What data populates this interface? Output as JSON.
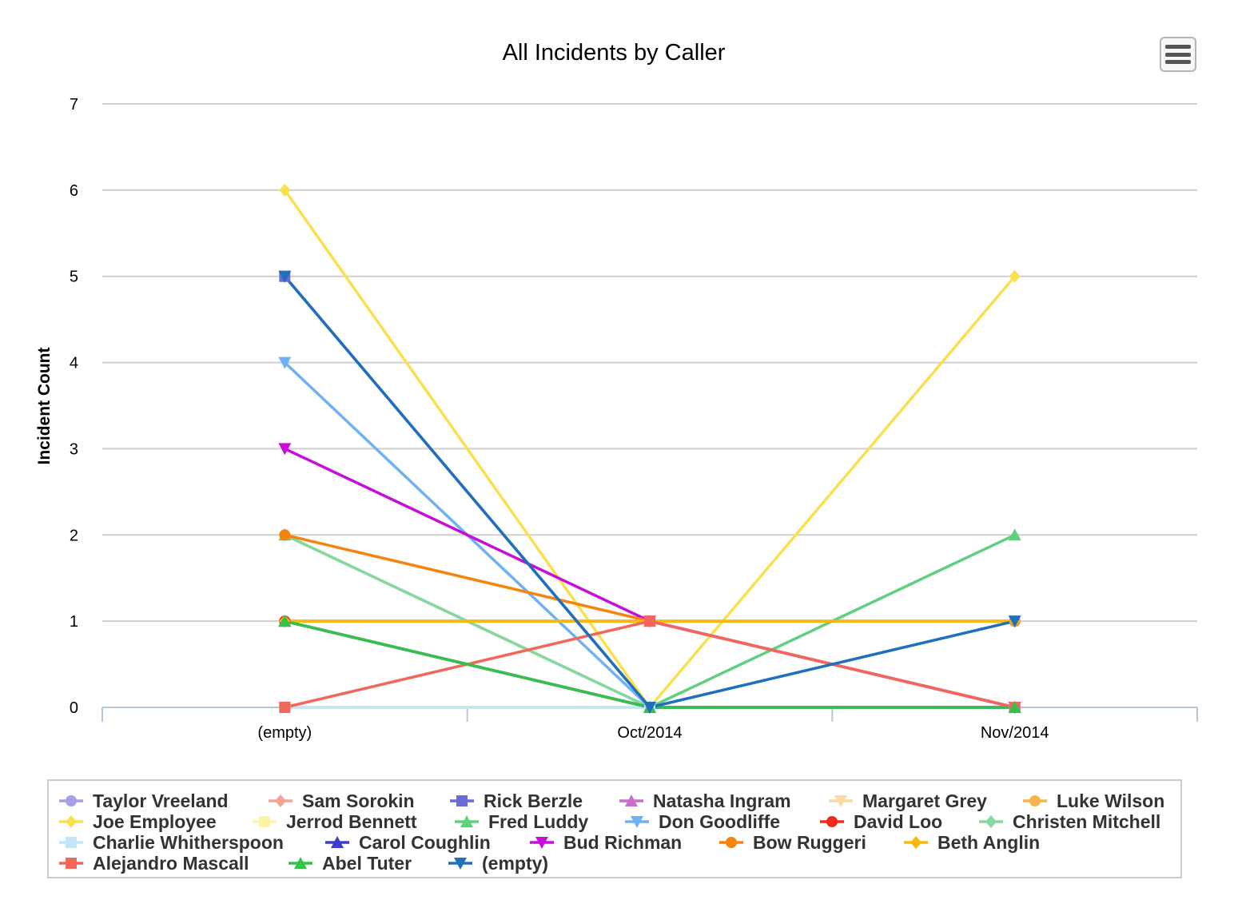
{
  "chart_data": {
    "type": "line",
    "title": "All Incidents by Caller",
    "xlabel": "",
    "ylabel": "Incident Count",
    "categories": [
      "(empty)",
      "Oct/2014",
      "Nov/2014"
    ],
    "ylim": [
      0,
      7
    ],
    "yticks": [
      0,
      1,
      2,
      3,
      4,
      5,
      6,
      7
    ],
    "grid": true,
    "legend_position": "bottom",
    "series": [
      {
        "name": "Taylor Vreeland",
        "values": [
          1,
          1,
          0
        ],
        "color": "#a3a0e6",
        "marker": "circle"
      },
      {
        "name": "Sam Sorokin",
        "values": [
          1,
          1,
          0
        ],
        "color": "#f7a296",
        "marker": "diamond"
      },
      {
        "name": "Rick Berzle",
        "values": [
          5,
          0,
          0
        ],
        "color": "#6b6bd6",
        "marker": "square"
      },
      {
        "name": "Natasha Ingram",
        "values": [
          1,
          1,
          0
        ],
        "color": "#c96fc9",
        "marker": "triangle"
      },
      {
        "name": "Margaret Grey",
        "values": [
          0,
          0,
          0
        ],
        "color": "#fcd9a0",
        "marker": "triangle-down"
      },
      {
        "name": "Luke Wilson",
        "values": [
          1,
          1,
          1
        ],
        "color": "#f6b44b",
        "marker": "circle"
      },
      {
        "name": "Joe Employee",
        "values": [
          6,
          0,
          5
        ],
        "color": "#f9e04e",
        "marker": "diamond"
      },
      {
        "name": "Jerrod Bennett",
        "values": [
          0,
          0,
          0
        ],
        "color": "#fbf3a6",
        "marker": "square"
      },
      {
        "name": "Fred Luddy",
        "values": [
          2,
          0,
          2
        ],
        "color": "#5fd07e",
        "marker": "triangle"
      },
      {
        "name": "Don Goodliffe",
        "values": [
          4,
          0,
          0
        ],
        "color": "#6fb1f4",
        "marker": "triangle-down"
      },
      {
        "name": "David Loo",
        "values": [
          1,
          0,
          0
        ],
        "color": "#f12a1e",
        "marker": "circle"
      },
      {
        "name": "Christen Mitchell",
        "values": [
          2,
          0,
          0
        ],
        "color": "#88d6a0",
        "marker": "diamond"
      },
      {
        "name": "Charlie Whitherspoon",
        "values": [
          0,
          0,
          0
        ],
        "color": "#c2e6f7",
        "marker": "square"
      },
      {
        "name": "Carol Coughlin",
        "values": [
          1,
          0,
          0
        ],
        "color": "#3d3dc7",
        "marker": "triangle"
      },
      {
        "name": "Bud Richman",
        "values": [
          3,
          1,
          0
        ],
        "color": "#c50fd9",
        "marker": "triangle-down"
      },
      {
        "name": "Bow Ruggeri",
        "values": [
          2,
          1,
          1
        ],
        "color": "#f5840f",
        "marker": "circle"
      },
      {
        "name": "Beth Anglin",
        "values": [
          1,
          1,
          1
        ],
        "color": "#f7b90f",
        "marker": "diamond"
      },
      {
        "name": "Alejandro Mascall",
        "values": [
          0,
          1,
          0
        ],
        "color": "#f3675a",
        "marker": "square"
      },
      {
        "name": "Abel Tuter",
        "values": [
          1,
          0,
          0
        ],
        "color": "#33c24a",
        "marker": "triangle"
      },
      {
        "name": "(empty)",
        "values": [
          5,
          0,
          1
        ],
        "color": "#1f6fbd",
        "marker": "triangle-down"
      }
    ]
  }
}
